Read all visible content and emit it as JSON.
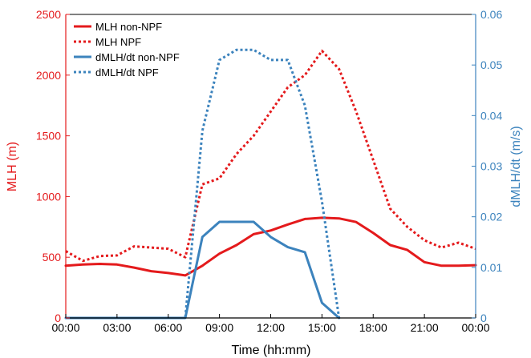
{
  "chart_data": {
    "type": "line",
    "xlabel": "Time (hh:mm)",
    "ylabel_left": "MLH (m)",
    "ylabel_right": "dMLH/dt (m/s)",
    "xlim": [
      0,
      24
    ],
    "ylim_left": [
      0,
      2500
    ],
    "ylim_right": [
      0,
      0.06
    ],
    "x_ticks": [
      0,
      3,
      6,
      9,
      12,
      15,
      18,
      21,
      24
    ],
    "x_tick_labels": [
      "00:00",
      "03:00",
      "06:00",
      "09:00",
      "12:00",
      "15:00",
      "18:00",
      "21:00",
      "00:00"
    ],
    "y_left_ticks": [
      0,
      500,
      1000,
      1500,
      2000,
      2500
    ],
    "y_left_tick_labels": [
      "0",
      "500",
      "1000",
      "1500",
      "2000",
      "2500"
    ],
    "y_right_ticks": [
      0,
      0.01,
      0.02,
      0.03,
      0.04,
      0.05,
      0.06
    ],
    "y_right_tick_labels": [
      "0",
      "0.01",
      "0.02",
      "0.03",
      "0.04",
      "0.05",
      "0.06"
    ],
    "grid": false,
    "legend_position": "top-left",
    "colors": {
      "left_axis": "#e41a1c",
      "right_axis": "#3c83bd"
    },
    "series": [
      {
        "name": "MLH non-NPF",
        "axis": "left",
        "style": "solid",
        "color": "#e41a1c",
        "x": [
          0,
          1,
          2,
          3,
          4,
          5,
          6,
          7,
          8,
          9,
          10,
          11,
          12,
          13,
          14,
          15,
          16,
          17,
          18,
          19,
          20,
          21,
          22,
          23,
          24
        ],
        "y": [
          430,
          440,
          445,
          440,
          415,
          385,
          370,
          350,
          430,
          530,
          600,
          690,
          720,
          770,
          815,
          825,
          820,
          790,
          700,
          600,
          560,
          460,
          430,
          430,
          435
        ]
      },
      {
        "name": "MLH NPF",
        "axis": "left",
        "style": "dotted",
        "color": "#e41a1c",
        "x": [
          0,
          1,
          2,
          3,
          4,
          5,
          6,
          7,
          8,
          9,
          10,
          11,
          12,
          13,
          14,
          15,
          16,
          17,
          18,
          19,
          20,
          21,
          22,
          23,
          24
        ],
        "y": [
          550,
          470,
          510,
          515,
          590,
          580,
          570,
          500,
          1100,
          1150,
          1350,
          1500,
          1700,
          1900,
          2000,
          2200,
          2050,
          1700,
          1300,
          900,
          750,
          640,
          580,
          620,
          570
        ]
      },
      {
        "name": "dMLH/dt non-NPF",
        "axis": "right",
        "style": "solid",
        "color": "#3c83bd",
        "x": [
          0,
          7,
          8,
          9,
          10,
          11,
          12,
          13,
          14,
          15,
          16
        ],
        "y": [
          0,
          0,
          0.016,
          0.019,
          0.019,
          0.019,
          0.016,
          0.014,
          0.013,
          0.003,
          0
        ]
      },
      {
        "name": "dMLH/dt NPF",
        "axis": "right",
        "style": "dotted",
        "color": "#3c83bd",
        "x": [
          0,
          7,
          8,
          9,
          10,
          11,
          12,
          13,
          14,
          15,
          16
        ],
        "y": [
          0,
          0,
          0.037,
          0.051,
          0.053,
          0.053,
          0.051,
          0.051,
          0.042,
          0.023,
          0
        ]
      }
    ]
  }
}
